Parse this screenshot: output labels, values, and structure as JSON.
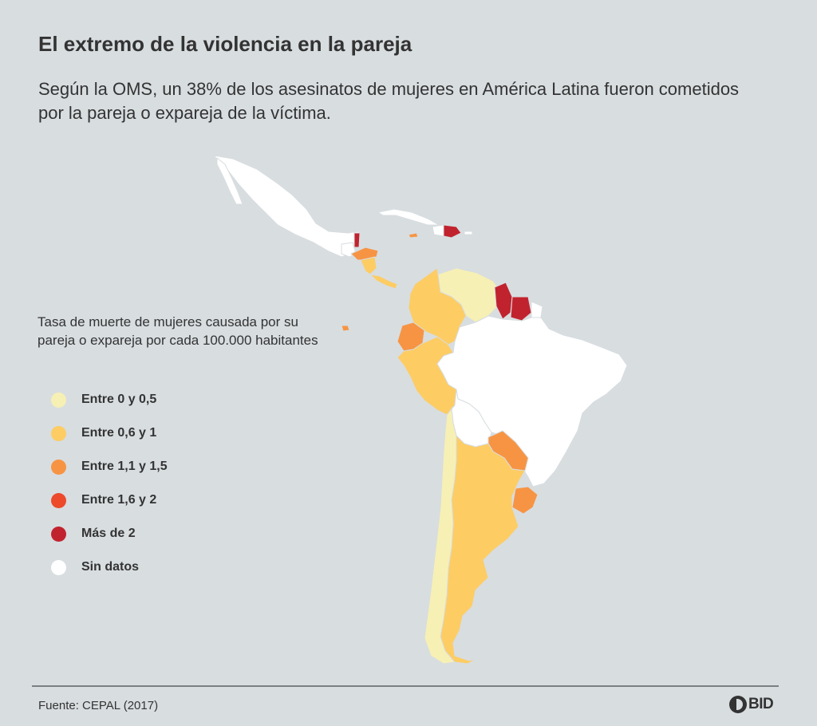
{
  "title": "El extremo de la violencia en la pareja",
  "subtitle": "Según la OMS, un 38% de los asesinatos de mujeres en América Latina fueron cometidos por la pareja o expareja de la víctima.",
  "legend": {
    "title": "Tasa de muerte de mujeres causada por su pareja o expareja por cada 100.000 habitantes",
    "items": [
      {
        "label": "Entre 0 y 0,5",
        "color": "#f7f0b4"
      },
      {
        "label": "Entre 0,6  y 1",
        "color": "#fdcc63"
      },
      {
        "label": "Entre 1,1 y 1,5",
        "color": "#f79443"
      },
      {
        "label": "Entre 1,6 y 2",
        "color": "#ec4a2b"
      },
      {
        "label": "Más de 2",
        "color": "#c1232e"
      },
      {
        "label": "Sin datos",
        "color": "#ffffff"
      }
    ]
  },
  "regions": [
    {
      "id": "mexico",
      "color": "#ffffff"
    },
    {
      "id": "guatemala",
      "color": "#ffffff"
    },
    {
      "id": "belize",
      "color": "#c1232e"
    },
    {
      "id": "honduras",
      "color": "#f79443"
    },
    {
      "id": "nicaragua",
      "color": "#fdcc63"
    },
    {
      "id": "panama",
      "color": "#fdcc63"
    },
    {
      "id": "cuba",
      "color": "#ffffff"
    },
    {
      "id": "haiti",
      "color": "#ffffff"
    },
    {
      "id": "dominican-republic",
      "color": "#c1232e"
    },
    {
      "id": "puerto-rico",
      "color": "#ffffff"
    },
    {
      "id": "jamaica",
      "color": "#f79443"
    },
    {
      "id": "colombia",
      "color": "#fdcc63"
    },
    {
      "id": "venezuela",
      "color": "#f7f0b4"
    },
    {
      "id": "guyana",
      "color": "#c1232e"
    },
    {
      "id": "suriname",
      "color": "#c1232e"
    },
    {
      "id": "french-guiana",
      "color": "#ffffff"
    },
    {
      "id": "ecuador",
      "color": "#f79443"
    },
    {
      "id": "peru",
      "color": "#fdcc63"
    },
    {
      "id": "brazil",
      "color": "#ffffff"
    },
    {
      "id": "bolivia",
      "color": "#ffffff"
    },
    {
      "id": "paraguay",
      "color": "#f79443"
    },
    {
      "id": "uruguay",
      "color": "#f79443"
    },
    {
      "id": "chile",
      "color": "#f7f0b4"
    },
    {
      "id": "argentina",
      "color": "#fdcc63"
    },
    {
      "id": "galapagos",
      "color": "#f79443"
    }
  ],
  "source": "Fuente: CEPAL (2017)",
  "logo_text": "BID"
}
